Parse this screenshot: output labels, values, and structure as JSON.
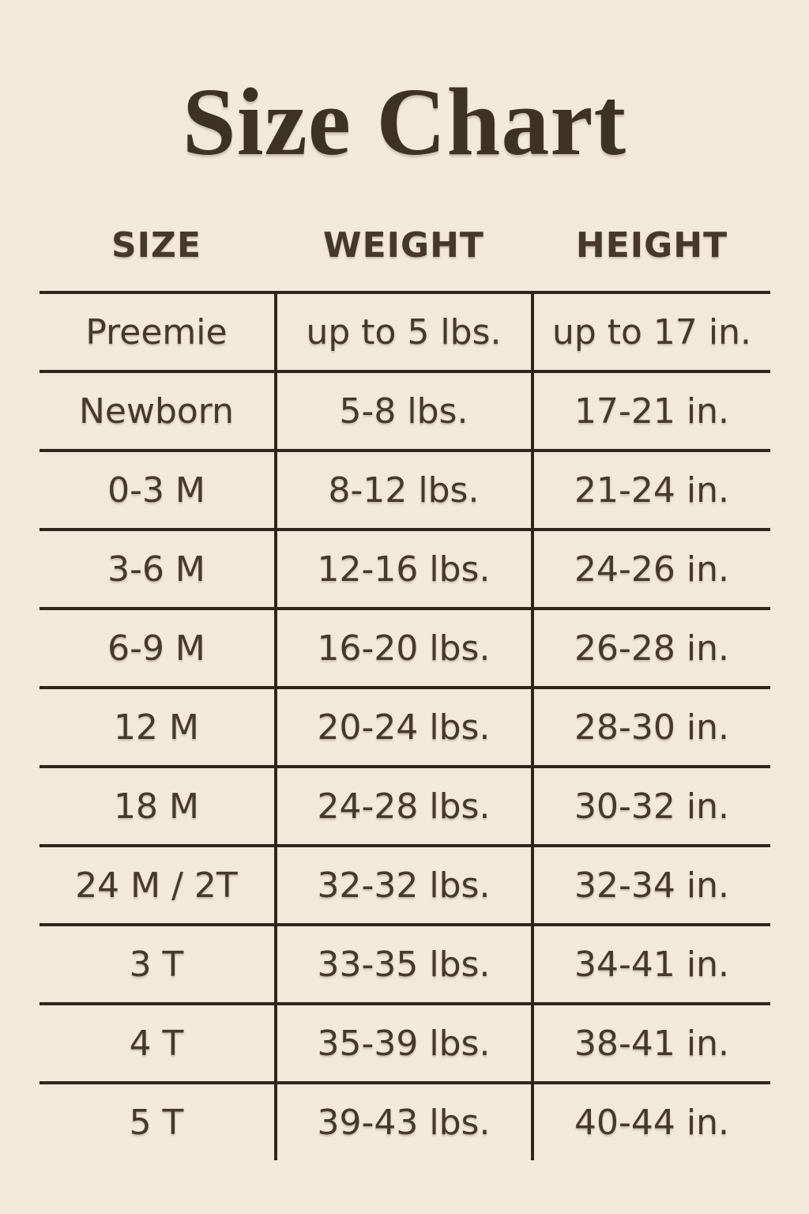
{
  "page": {
    "title": "Size Chart",
    "background_color": "#f2e9db",
    "text_color": "#46382a",
    "line_color": "#2e261b"
  },
  "chart_data": {
    "type": "table",
    "title": "Size Chart",
    "columns": [
      "SIZE",
      "WEIGHT",
      "HEIGHT"
    ],
    "rows": [
      {
        "size": "Preemie",
        "weight": "up to 5 lbs.",
        "height": "up to 17 in."
      },
      {
        "size": "Newborn",
        "weight": "5-8 lbs.",
        "height": "17-21 in."
      },
      {
        "size": "0-3 M",
        "weight": "8-12 lbs.",
        "height": "21-24 in."
      },
      {
        "size": "3-6 M",
        "weight": "12-16 lbs.",
        "height": "24-26 in."
      },
      {
        "size": "6-9 M",
        "weight": "16-20 lbs.",
        "height": "26-28 in."
      },
      {
        "size": "12 M",
        "weight": "20-24 lbs.",
        "height": "28-30 in."
      },
      {
        "size": "18 M",
        "weight": "24-28 lbs.",
        "height": "30-32 in."
      },
      {
        "size": "24 M / 2T",
        "weight": "32-32 lbs.",
        "height": "32-34 in."
      },
      {
        "size": "3 T",
        "weight": "33-35 lbs.",
        "height": "34-41 in."
      },
      {
        "size": "4 T",
        "weight": "35-39 lbs.",
        "height": "38-41 in."
      },
      {
        "size": "5 T",
        "weight": "39-43 lbs.",
        "height": "40-44 in."
      }
    ]
  }
}
